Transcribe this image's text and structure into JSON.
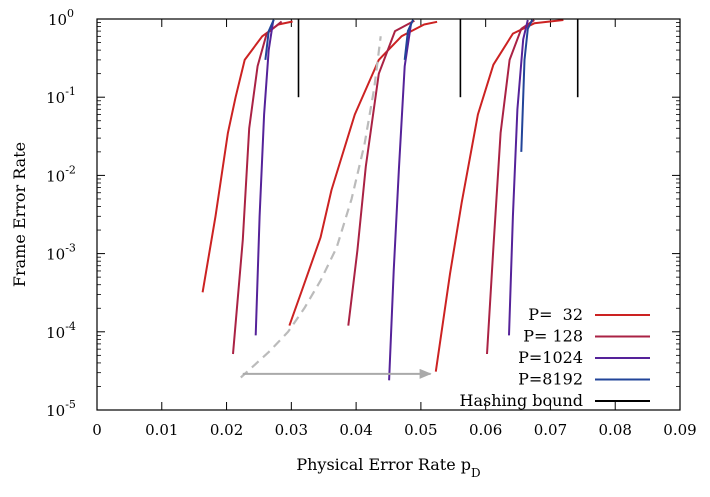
{
  "chart_data": {
    "type": "line",
    "title": "",
    "xlabel": "Physical Error Rate p",
    "xlabel_sub": "D",
    "ylabel": "Frame Error Rate",
    "xlim": [
      0,
      0.09
    ],
    "ylim": [
      1e-05,
      1
    ],
    "yscale": "log",
    "grid": false,
    "legend_position": "bottom-right",
    "x_ticks": [
      {
        "value": 0,
        "label": "0"
      },
      {
        "value": 0.01,
        "label": "0.01"
      },
      {
        "value": 0.02,
        "label": "0.02"
      },
      {
        "value": 0.03,
        "label": "0.03"
      },
      {
        "value": 0.04,
        "label": "0.04"
      },
      {
        "value": 0.05,
        "label": "0.05"
      },
      {
        "value": 0.06,
        "label": "0.06"
      },
      {
        "value": 0.07,
        "label": "0.07"
      },
      {
        "value": 0.08,
        "label": "0.08"
      },
      {
        "value": 0.09,
        "label": "0.09"
      }
    ],
    "y_ticks": [
      {
        "value": 1,
        "base": "10",
        "exp": "0"
      },
      {
        "value": 0.1,
        "base": "10",
        "exp": "-1"
      },
      {
        "value": 0.01,
        "base": "10",
        "exp": "-2"
      },
      {
        "value": 0.001,
        "base": "10",
        "exp": "-3"
      },
      {
        "value": 0.0001,
        "base": "10",
        "exp": "-4"
      },
      {
        "value": 1e-05,
        "base": "10",
        "exp": "-5"
      }
    ],
    "series": [
      {
        "name": "P=  32",
        "color": "#cc2222",
        "dashed": false,
        "curves": [
          [
            [
              0.0163,
              0.00032
            ],
            [
              0.0183,
              0.003
            ],
            [
              0.0202,
              0.035
            ],
            [
              0.0214,
              0.1
            ],
            [
              0.0228,
              0.3
            ],
            [
              0.0255,
              0.6
            ],
            [
              0.028,
              0.85
            ],
            [
              0.0302,
              0.93
            ]
          ],
          [
            [
              0.0297,
              0.00012
            ],
            [
              0.0317,
              0.00035
            ],
            [
              0.0345,
              0.0016
            ],
            [
              0.0362,
              0.0065
            ],
            [
              0.0398,
              0.06
            ],
            [
              0.0435,
              0.3
            ],
            [
              0.047,
              0.6
            ],
            [
              0.0505,
              0.85
            ],
            [
              0.0525,
              0.92
            ]
          ],
          [
            [
              0.0523,
              3.1e-05
            ],
            [
              0.0545,
              0.00055
            ],
            [
              0.0563,
              0.0045
            ],
            [
              0.0588,
              0.06
            ],
            [
              0.0612,
              0.26
            ],
            [
              0.0642,
              0.65
            ],
            [
              0.0675,
              0.88
            ],
            [
              0.072,
              0.97
            ]
          ]
        ]
      },
      {
        "name": "P= 128",
        "color": "#aa2244",
        "dashed": false,
        "curves": [
          [
            [
              0.021,
              5.2e-05
            ],
            [
              0.0225,
              0.0015
            ],
            [
              0.0235,
              0.04
            ],
            [
              0.0248,
              0.25
            ],
            [
              0.0262,
              0.65
            ],
            [
              0.0285,
              0.93
            ]
          ],
          [
            [
              0.0388,
              0.00012
            ],
            [
              0.0402,
              0.0011
            ],
            [
              0.0415,
              0.013
            ],
            [
              0.0435,
              0.2
            ],
            [
              0.046,
              0.7
            ],
            [
              0.049,
              0.95
            ]
          ],
          [
            [
              0.0602,
              5.2e-05
            ],
            [
              0.0612,
              0.0012
            ],
            [
              0.0623,
              0.035
            ],
            [
              0.0637,
              0.3
            ],
            [
              0.0655,
              0.75
            ],
            [
              0.0675,
              0.97
            ]
          ]
        ]
      },
      {
        "name": "P=1024",
        "color": "#552299",
        "dashed": false,
        "curves": [
          [
            [
              0.0245,
              9e-05
            ],
            [
              0.0251,
              0.003
            ],
            [
              0.0258,
              0.06
            ],
            [
              0.0265,
              0.4
            ],
            [
              0.0272,
              0.95
            ]
          ],
          [
            [
              0.0451,
              2.4e-05
            ],
            [
              0.0458,
              0.0006
            ],
            [
              0.0466,
              0.012
            ],
            [
              0.0475,
              0.25
            ],
            [
              0.0485,
              0.9
            ]
          ],
          [
            [
              0.0636,
              9e-05
            ],
            [
              0.0642,
              0.003
            ],
            [
              0.0649,
              0.07
            ],
            [
              0.0658,
              0.55
            ],
            [
              0.0665,
              0.97
            ]
          ]
        ]
      },
      {
        "name": "P=8192",
        "color": "#224499",
        "dashed": false,
        "curves": [
          [
            [
              0.026,
              0.3
            ],
            [
              0.0265,
              0.7
            ],
            [
              0.0273,
              0.98
            ]
          ],
          [
            [
              0.0475,
              0.3
            ],
            [
              0.048,
              0.7
            ],
            [
              0.0488,
              0.98
            ]
          ],
          [
            [
              0.0655,
              0.02
            ],
            [
              0.066,
              0.3
            ],
            [
              0.0665,
              0.75
            ],
            [
              0.0672,
              0.98
            ]
          ]
        ]
      },
      {
        "name": "Hashing bound",
        "color": "#000000",
        "dashed": false,
        "curves": [
          [
            [
              0.0311,
              0.1
            ],
            [
              0.0311,
              1
            ]
          ],
          [
            [
              0.0561,
              0.1
            ],
            [
              0.0561,
              1
            ]
          ],
          [
            [
              0.0742,
              0.1
            ],
            [
              0.0742,
              1
            ]
          ]
        ]
      },
      {
        "name": "",
        "color": "#bbbbbb",
        "dashed": true,
        "in_legend": false,
        "curves": [
          [
            [
              0.0222,
              2.6e-05
            ],
            [
              0.0265,
              5.5e-05
            ],
            [
              0.0295,
              0.0001
            ],
            [
              0.032,
              0.0002
            ],
            [
              0.0345,
              0.00045
            ],
            [
              0.037,
              0.0012
            ],
            [
              0.0393,
              0.005
            ],
            [
              0.0413,
              0.025
            ],
            [
              0.0428,
              0.13
            ],
            [
              0.0438,
              0.6
            ]
          ]
        ]
      }
    ],
    "annotations": [
      {
        "type": "arrow",
        "color": "#aaaaaa",
        "from": [
          0.0225,
          2.9e-05
        ],
        "to": [
          0.0515,
          2.9e-05
        ]
      }
    ],
    "colors": {
      "frame": "#000000",
      "background": "#ffffff"
    }
  }
}
